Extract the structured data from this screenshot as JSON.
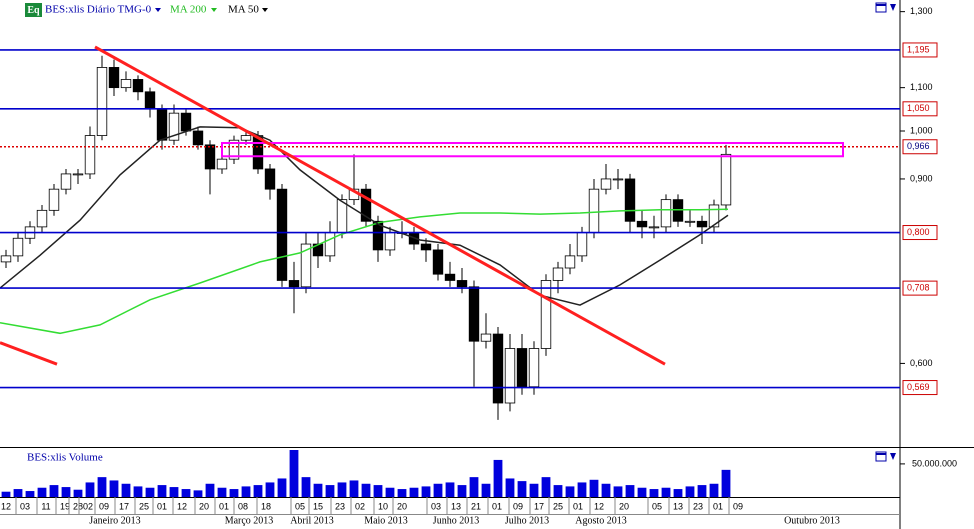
{
  "chart_data": [
    {
      "type": "candlestick",
      "badge": "Eq",
      "title": "BES:xlis Diário TMG-0",
      "log_scale": true,
      "xlim": [
        0,
        225
      ],
      "ylim": [
        0.4993,
        1.3337
      ],
      "yticks": [
        {
          "value": 1.3,
          "label": "1,300"
        },
        {
          "value": 1.1,
          "label": "1,100"
        },
        {
          "value": 1.0,
          "label": "1,000"
        },
        {
          "value": 0.9,
          "label": "0,900"
        },
        {
          "value": 0.6,
          "label": "0,600"
        }
      ],
      "up_color": "#ffffff",
      "down_color": "#000000",
      "x": [
        1.5,
        4.5,
        7.5,
        10.5,
        13.5,
        16.5,
        19.5,
        22.5,
        25.5,
        28.5,
        31.5,
        34.5,
        37.5,
        40.5,
        43.5,
        46.5,
        49.5,
        52.5,
        55.5,
        58.5,
        61.5,
        64.5,
        67.5,
        70.5,
        73.5,
        76.5,
        79.5,
        82.5,
        85.5,
        88.5,
        91.5,
        94.5,
        97.5,
        100.5,
        103.5,
        106.5,
        109.5,
        112.5,
        115.5,
        118.5,
        121.5,
        124.5,
        127.5,
        130.5,
        133.5,
        136.5,
        139.5,
        142.5,
        145.5,
        148.5,
        151.5,
        154.5,
        157.5,
        160.5,
        163.5,
        166.5,
        169.5,
        172.5,
        175.5,
        178.5,
        181.5
      ],
      "open": [
        0.75,
        0.76,
        0.79,
        0.81,
        0.84,
        0.88,
        0.91,
        0.91,
        0.99,
        1.15,
        1.1,
        1.12,
        1.09,
        1.05,
        0.98,
        1.04,
        1.0,
        0.97,
        0.92,
        0.94,
        0.98,
        0.99,
        0.92,
        0.88,
        0.72,
        0.71,
        0.78,
        0.76,
        0.8,
        0.86,
        0.88,
        0.82,
        0.77,
        0.8,
        0.8,
        0.78,
        0.77,
        0.73,
        0.72,
        0.71,
        0.63,
        0.64,
        0.55,
        0.62,
        0.57,
        0.62,
        0.72,
        0.74,
        0.76,
        0.8,
        0.88,
        0.9,
        0.9,
        0.82,
        0.81,
        0.81,
        0.86,
        0.82,
        0.82,
        0.81,
        0.85
      ],
      "high": [
        0.77,
        0.8,
        0.82,
        0.85,
        0.89,
        0.92,
        0.92,
        1.01,
        1.18,
        1.17,
        1.14,
        1.13,
        1.1,
        1.06,
        1.06,
        1.05,
        1.01,
        0.98,
        0.96,
        0.99,
        1.0,
        1.0,
        0.93,
        0.89,
        0.75,
        0.8,
        0.8,
        0.82,
        0.87,
        0.95,
        0.89,
        0.83,
        0.81,
        0.82,
        0.81,
        0.79,
        0.78,
        0.75,
        0.74,
        0.72,
        0.67,
        0.65,
        0.64,
        0.64,
        0.63,
        0.73,
        0.75,
        0.78,
        0.81,
        0.9,
        0.93,
        0.92,
        0.91,
        0.84,
        0.83,
        0.87,
        0.87,
        0.84,
        0.83,
        0.86,
        0.97
      ],
      "low": [
        0.74,
        0.75,
        0.78,
        0.8,
        0.83,
        0.87,
        0.89,
        0.9,
        0.98,
        1.08,
        1.09,
        1.07,
        1.03,
        0.96,
        0.97,
        0.99,
        0.96,
        0.87,
        0.91,
        0.93,
        0.97,
        0.91,
        0.86,
        0.71,
        0.67,
        0.7,
        0.74,
        0.75,
        0.79,
        0.85,
        0.81,
        0.75,
        0.76,
        0.79,
        0.77,
        0.75,
        0.72,
        0.71,
        0.7,
        0.57,
        0.62,
        0.53,
        0.54,
        0.56,
        0.56,
        0.61,
        0.7,
        0.73,
        0.75,
        0.79,
        0.87,
        0.88,
        0.8,
        0.79,
        0.79,
        0.8,
        0.81,
        0.81,
        0.78,
        0.8,
        0.84
      ],
      "close": [
        0.76,
        0.79,
        0.81,
        0.84,
        0.88,
        0.91,
        0.91,
        0.99,
        1.15,
        1.1,
        1.12,
        1.09,
        1.05,
        0.98,
        1.04,
        1.0,
        0.97,
        0.92,
        0.94,
        0.98,
        0.99,
        0.92,
        0.88,
        0.72,
        0.71,
        0.78,
        0.76,
        0.8,
        0.86,
        0.88,
        0.82,
        0.77,
        0.8,
        0.8,
        0.78,
        0.77,
        0.73,
        0.72,
        0.71,
        0.63,
        0.64,
        0.55,
        0.62,
        0.57,
        0.62,
        0.72,
        0.74,
        0.76,
        0.8,
        0.88,
        0.9,
        0.9,
        0.82,
        0.81,
        0.81,
        0.86,
        0.82,
        0.82,
        0.81,
        0.85,
        0.95
      ],
      "lines": [
        {
          "name": "MA 200",
          "color": "#33dd33",
          "x": [
            0,
            15,
            25,
            37.5,
            50,
            65,
            75,
            85,
            95,
            105,
            115,
            125,
            135,
            145,
            155,
            165,
            175,
            182
          ],
          "values": [
            0.656,
            0.641,
            0.653,
            0.69,
            0.716,
            0.75,
            0.765,
            0.796,
            0.818,
            0.828,
            0.835,
            0.835,
            0.833,
            0.835,
            0.839,
            0.841,
            0.841,
            0.842
          ]
        },
        {
          "name": "MA 50",
          "color": "#222222",
          "x": [
            0,
            10,
            20,
            30,
            40,
            50,
            60,
            67.5,
            75,
            85,
            95,
            105,
            115,
            125,
            135,
            145,
            155,
            165,
            175,
            182
          ],
          "values": [
            0.708,
            0.761,
            0.822,
            0.908,
            0.98,
            1.009,
            1.007,
            0.98,
            0.918,
            0.859,
            0.813,
            0.787,
            0.778,
            0.745,
            0.697,
            0.682,
            0.713,
            0.753,
            0.796,
            0.831
          ]
        }
      ],
      "hlines": [
        {
          "value": 1.195,
          "label": "1,195",
          "color": "#0000cc"
        },
        {
          "value": 1.05,
          "label": "1,050",
          "color": "#0000cc"
        },
        {
          "value": 0.966,
          "label": "0,966",
          "color": "#dd0000"
        },
        {
          "value": 0.8,
          "label": "0,800",
          "color": "#0000cc"
        },
        {
          "value": 0.708,
          "label": "0,708",
          "color": "#0000cc"
        },
        {
          "value": 0.569,
          "label": "0,569",
          "color": "#0000cc"
        }
      ],
      "trendlines": [
        {
          "color": "#ff2020",
          "x": [
            23.75,
            166.25
          ],
          "values": [
            1.203,
            0.599
          ]
        },
        {
          "color": "#ff2020",
          "x": [
            0,
            14.25
          ],
          "values": [
            0.628,
            0.599
          ]
        }
      ],
      "zones": [
        {
          "color": "#ff00ff",
          "x": [
            55.5,
            210.75
          ],
          "values": [
            0.974,
            0.946
          ]
        }
      ]
    },
    {
      "type": "bar",
      "title": "BES:xlis Volume",
      "color": "#0000dd",
      "xlim": [
        0,
        225
      ],
      "ylim": [
        0,
        71000000
      ],
      "yticks": [
        {
          "value": 50000000,
          "label": "50.000.000"
        }
      ],
      "x": [
        1.5,
        4.5,
        7.5,
        10.5,
        13.5,
        16.5,
        19.5,
        22.5,
        25.5,
        28.5,
        31.5,
        34.5,
        37.5,
        40.5,
        43.5,
        46.5,
        49.5,
        52.5,
        55.5,
        58.5,
        61.5,
        64.5,
        67.5,
        70.5,
        73.5,
        76.5,
        79.5,
        82.5,
        85.5,
        88.5,
        91.5,
        94.5,
        97.5,
        100.5,
        103.5,
        106.5,
        109.5,
        112.5,
        115.5,
        118.5,
        121.5,
        124.5,
        127.5,
        130.5,
        133.5,
        136.5,
        139.5,
        142.5,
        145.5,
        148.5,
        151.5,
        154.5,
        157.5,
        160.5,
        163.5,
        166.5,
        169.5,
        172.5,
        175.5,
        178.5,
        181.5
      ],
      "values": [
        8000000,
        12000000,
        9000000,
        14000000,
        18000000,
        15000000,
        11000000,
        22000000,
        30000000,
        25000000,
        20000000,
        16000000,
        14000000,
        18000000,
        15000000,
        12000000,
        10000000,
        20000000,
        14000000,
        12000000,
        16000000,
        18000000,
        22000000,
        28000000,
        71000000,
        30000000,
        20000000,
        18000000,
        22000000,
        25000000,
        20000000,
        18000000,
        14000000,
        12000000,
        14000000,
        16000000,
        20000000,
        22000000,
        18000000,
        30000000,
        20000000,
        56000000,
        28000000,
        24000000,
        20000000,
        30000000,
        18000000,
        16000000,
        22000000,
        26000000,
        20000000,
        16000000,
        18000000,
        14000000,
        12000000,
        14000000,
        12000000,
        16000000,
        18000000,
        20000000,
        41000000
      ],
      "xticks": [
        {
          "value": 1.5,
          "label": "12"
        },
        {
          "value": 6.25,
          "label": "03"
        },
        {
          "value": 11.5,
          "label": "11"
        },
        {
          "value": 16.25,
          "label": "19"
        },
        {
          "value": 19.5,
          "label": "28"
        },
        {
          "value": 22,
          "label": "02"
        },
        {
          "value": 26,
          "label": "09"
        },
        {
          "value": 31,
          "label": "17"
        },
        {
          "value": 36,
          "label": "25"
        },
        {
          "value": 40.5,
          "label": "01"
        },
        {
          "value": 45.5,
          "label": "12"
        },
        {
          "value": 51,
          "label": "20"
        },
        {
          "value": 56,
          "label": "01"
        },
        {
          "value": 60.75,
          "label": "08"
        },
        {
          "value": 66.5,
          "label": "18"
        },
        {
          "value": 75,
          "label": "05"
        },
        {
          "value": 79.5,
          "label": "15"
        },
        {
          "value": 85,
          "label": "23"
        },
        {
          "value": 90,
          "label": "02"
        },
        {
          "value": 95.75,
          "label": "10"
        },
        {
          "value": 100.5,
          "label": "20"
        },
        {
          "value": 109,
          "label": "03"
        },
        {
          "value": 114,
          "label": "13"
        },
        {
          "value": 119,
          "label": "21"
        },
        {
          "value": 124.25,
          "label": "01"
        },
        {
          "value": 129.5,
          "label": "09"
        },
        {
          "value": 134.75,
          "label": "17"
        },
        {
          "value": 139.5,
          "label": "25"
        },
        {
          "value": 144.5,
          "label": "01"
        },
        {
          "value": 149.75,
          "label": "12"
        },
        {
          "value": 156,
          "label": "20"
        },
        {
          "value": 164.25,
          "label": "05"
        },
        {
          "value": 169.5,
          "label": "13"
        },
        {
          "value": 174.5,
          "label": "23"
        },
        {
          "value": 179.5,
          "label": "01"
        },
        {
          "value": 184.5,
          "label": "09"
        }
      ],
      "month_ticks": [
        {
          "value": 28.75,
          "label": "Janeiro 2013"
        },
        {
          "value": 62.25,
          "label": "Março 2013"
        },
        {
          "value": 78,
          "label": "Abril 2013"
        },
        {
          "value": 96.5,
          "label": "Maio 2013"
        },
        {
          "value": 114,
          "label": "Junho 2013"
        },
        {
          "value": 131.75,
          "label": "Julho 2013"
        },
        {
          "value": 150.25,
          "label": "Agosto 2013"
        },
        {
          "value": 203,
          "label": "Outubro 2013"
        }
      ]
    }
  ]
}
